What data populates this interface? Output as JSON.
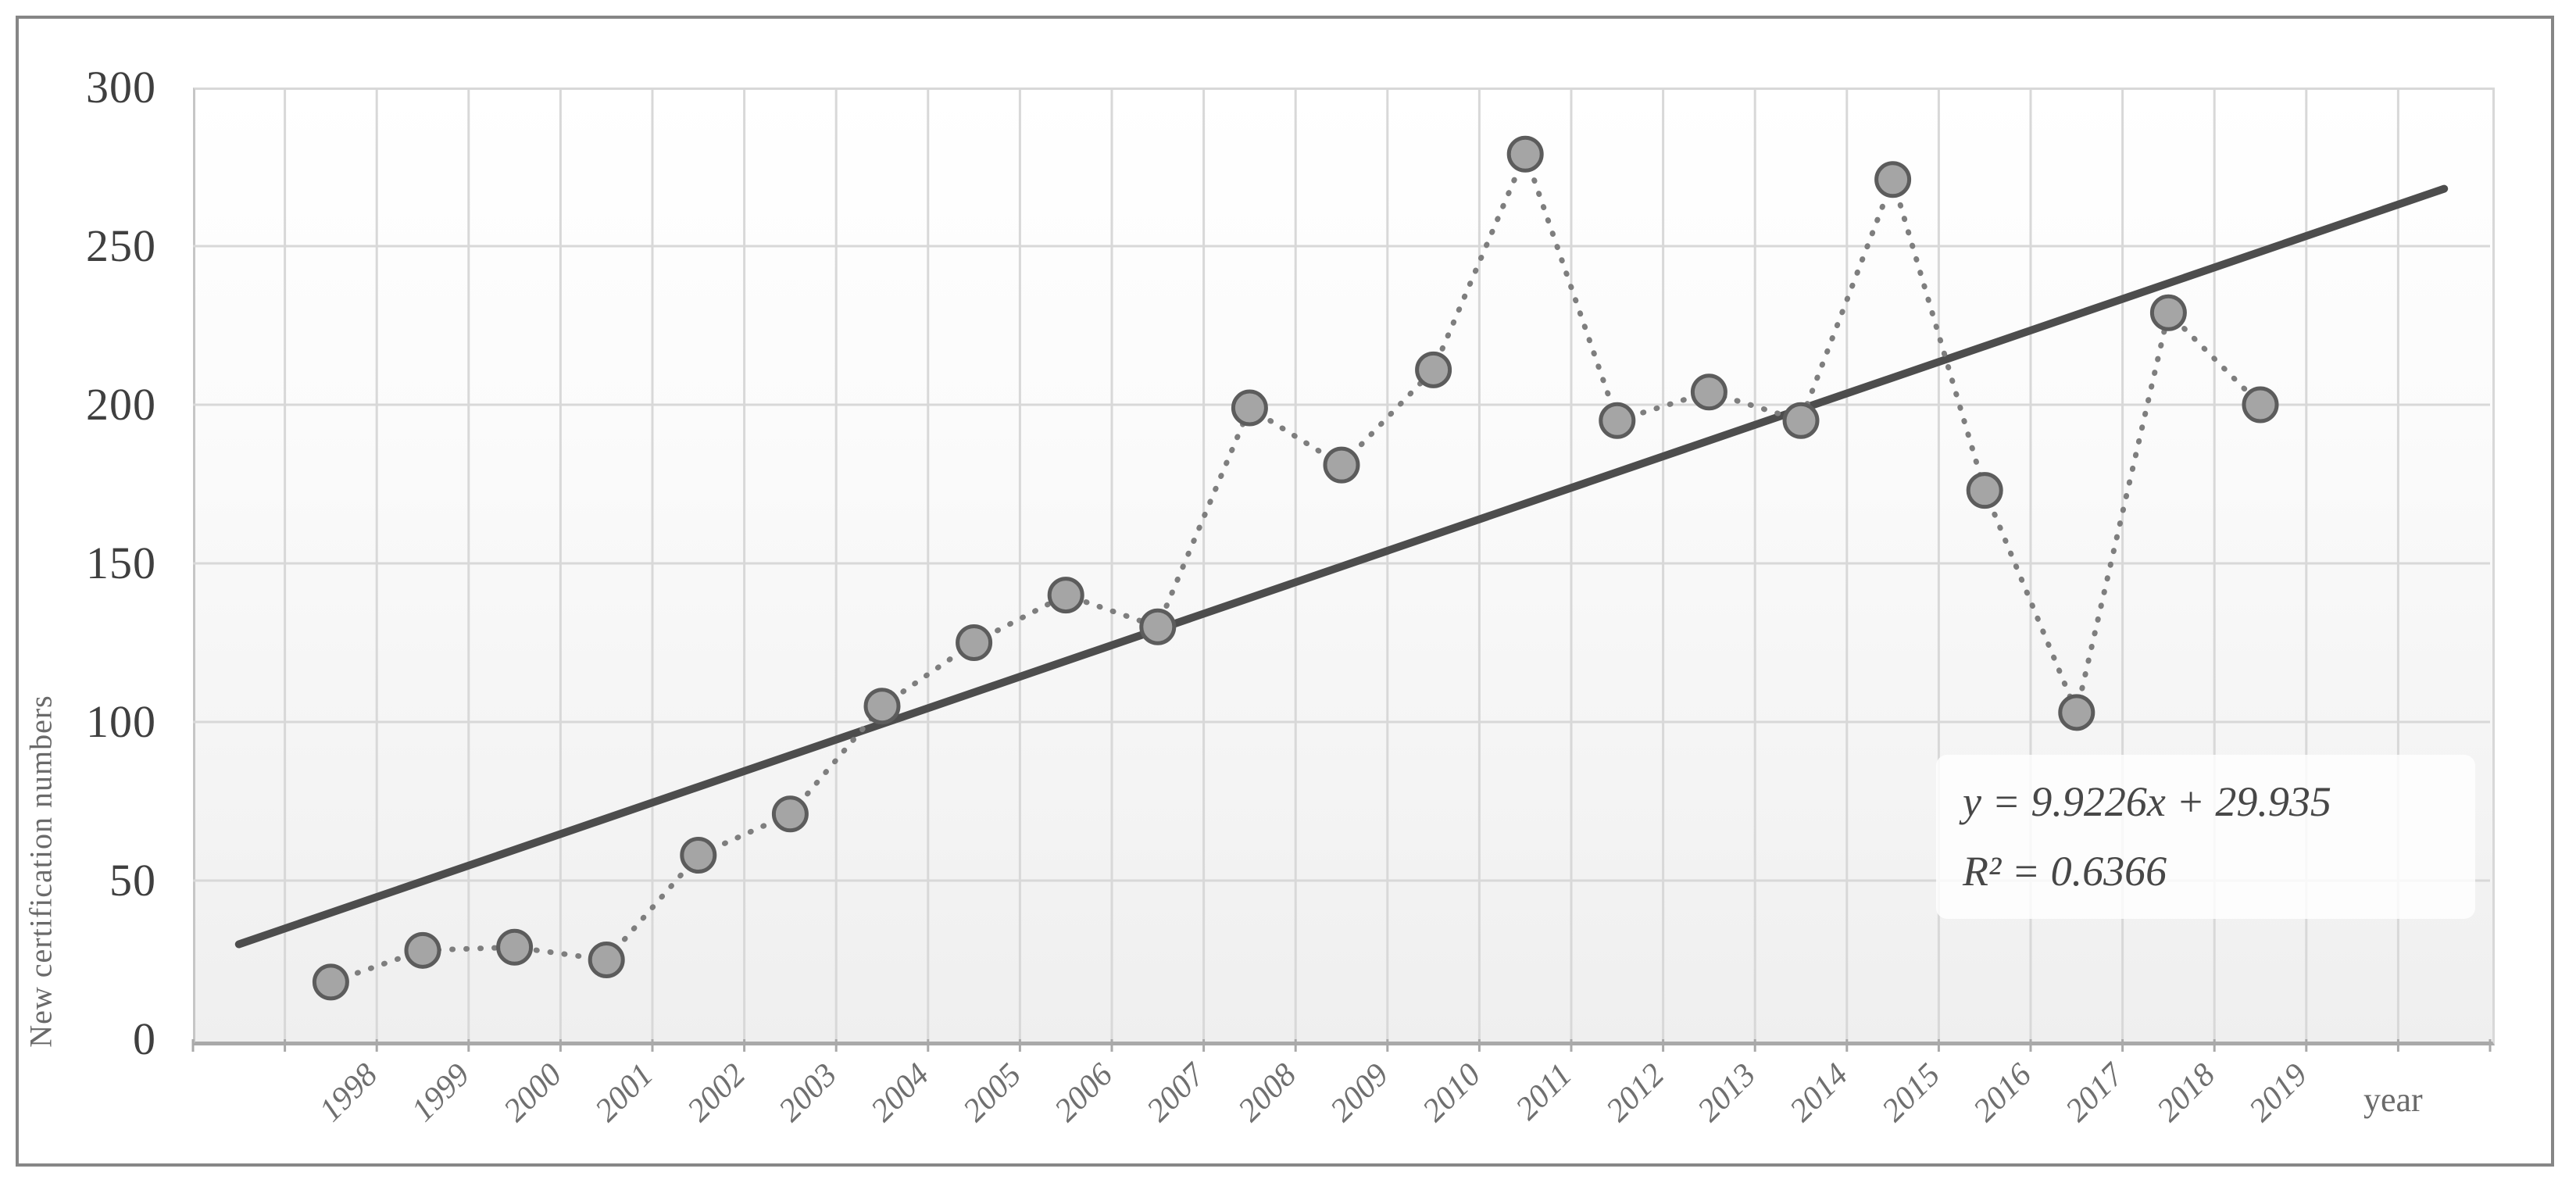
{
  "chart_data": {
    "type": "scatter",
    "title": "",
    "xlabel": "year",
    "ylabel": "New certification numbers",
    "categories": [
      "1998",
      "1999",
      "2000",
      "2001",
      "2002",
      "2003",
      "2004",
      "2005",
      "2006",
      "2007",
      "2008",
      "2009",
      "2010",
      "2011",
      "2012",
      "2013",
      "2014",
      "2015",
      "2016",
      "2017",
      "2018",
      "2019"
    ],
    "values": [
      18,
      28,
      29,
      25,
      58,
      71,
      105,
      125,
      140,
      130,
      199,
      181,
      211,
      279,
      195,
      204,
      195,
      271,
      173,
      103,
      229,
      200
    ],
    "ylim": [
      0,
      300
    ],
    "yticks": [
      300,
      250,
      200,
      150,
      100,
      50,
      0
    ],
    "grid": true,
    "legend_position": "none",
    "marker": "circle",
    "line_style": "dotted",
    "trendline": {
      "type": "linear",
      "slope": 9.9226,
      "intercept": 29.935,
      "equation_label": "y = 9.9226x + 29.935",
      "r2_label": "R² = 0.6366",
      "x_range": [
        0,
        24
      ]
    },
    "colors": {
      "marker_fill": "#a5a5a5",
      "marker_stroke": "#5c5c5c",
      "dotted_line": "#7e7e7e",
      "trendline": "#4d4d4d",
      "gridline": "#d8d8d8",
      "axis_line": "#a9a9a9",
      "y_tick_text": "#3f3f3f",
      "x_tick_text": "#6f6f6f",
      "axis_title_text": "#6a6a6a",
      "equation_text": "#474747"
    }
  },
  "labels": {
    "y_axis_title": "New certification numbers",
    "x_axis_title": "year",
    "equation_line1": "y = 9.9226x + 29.935",
    "equation_line2": "R² = 0.6366"
  }
}
